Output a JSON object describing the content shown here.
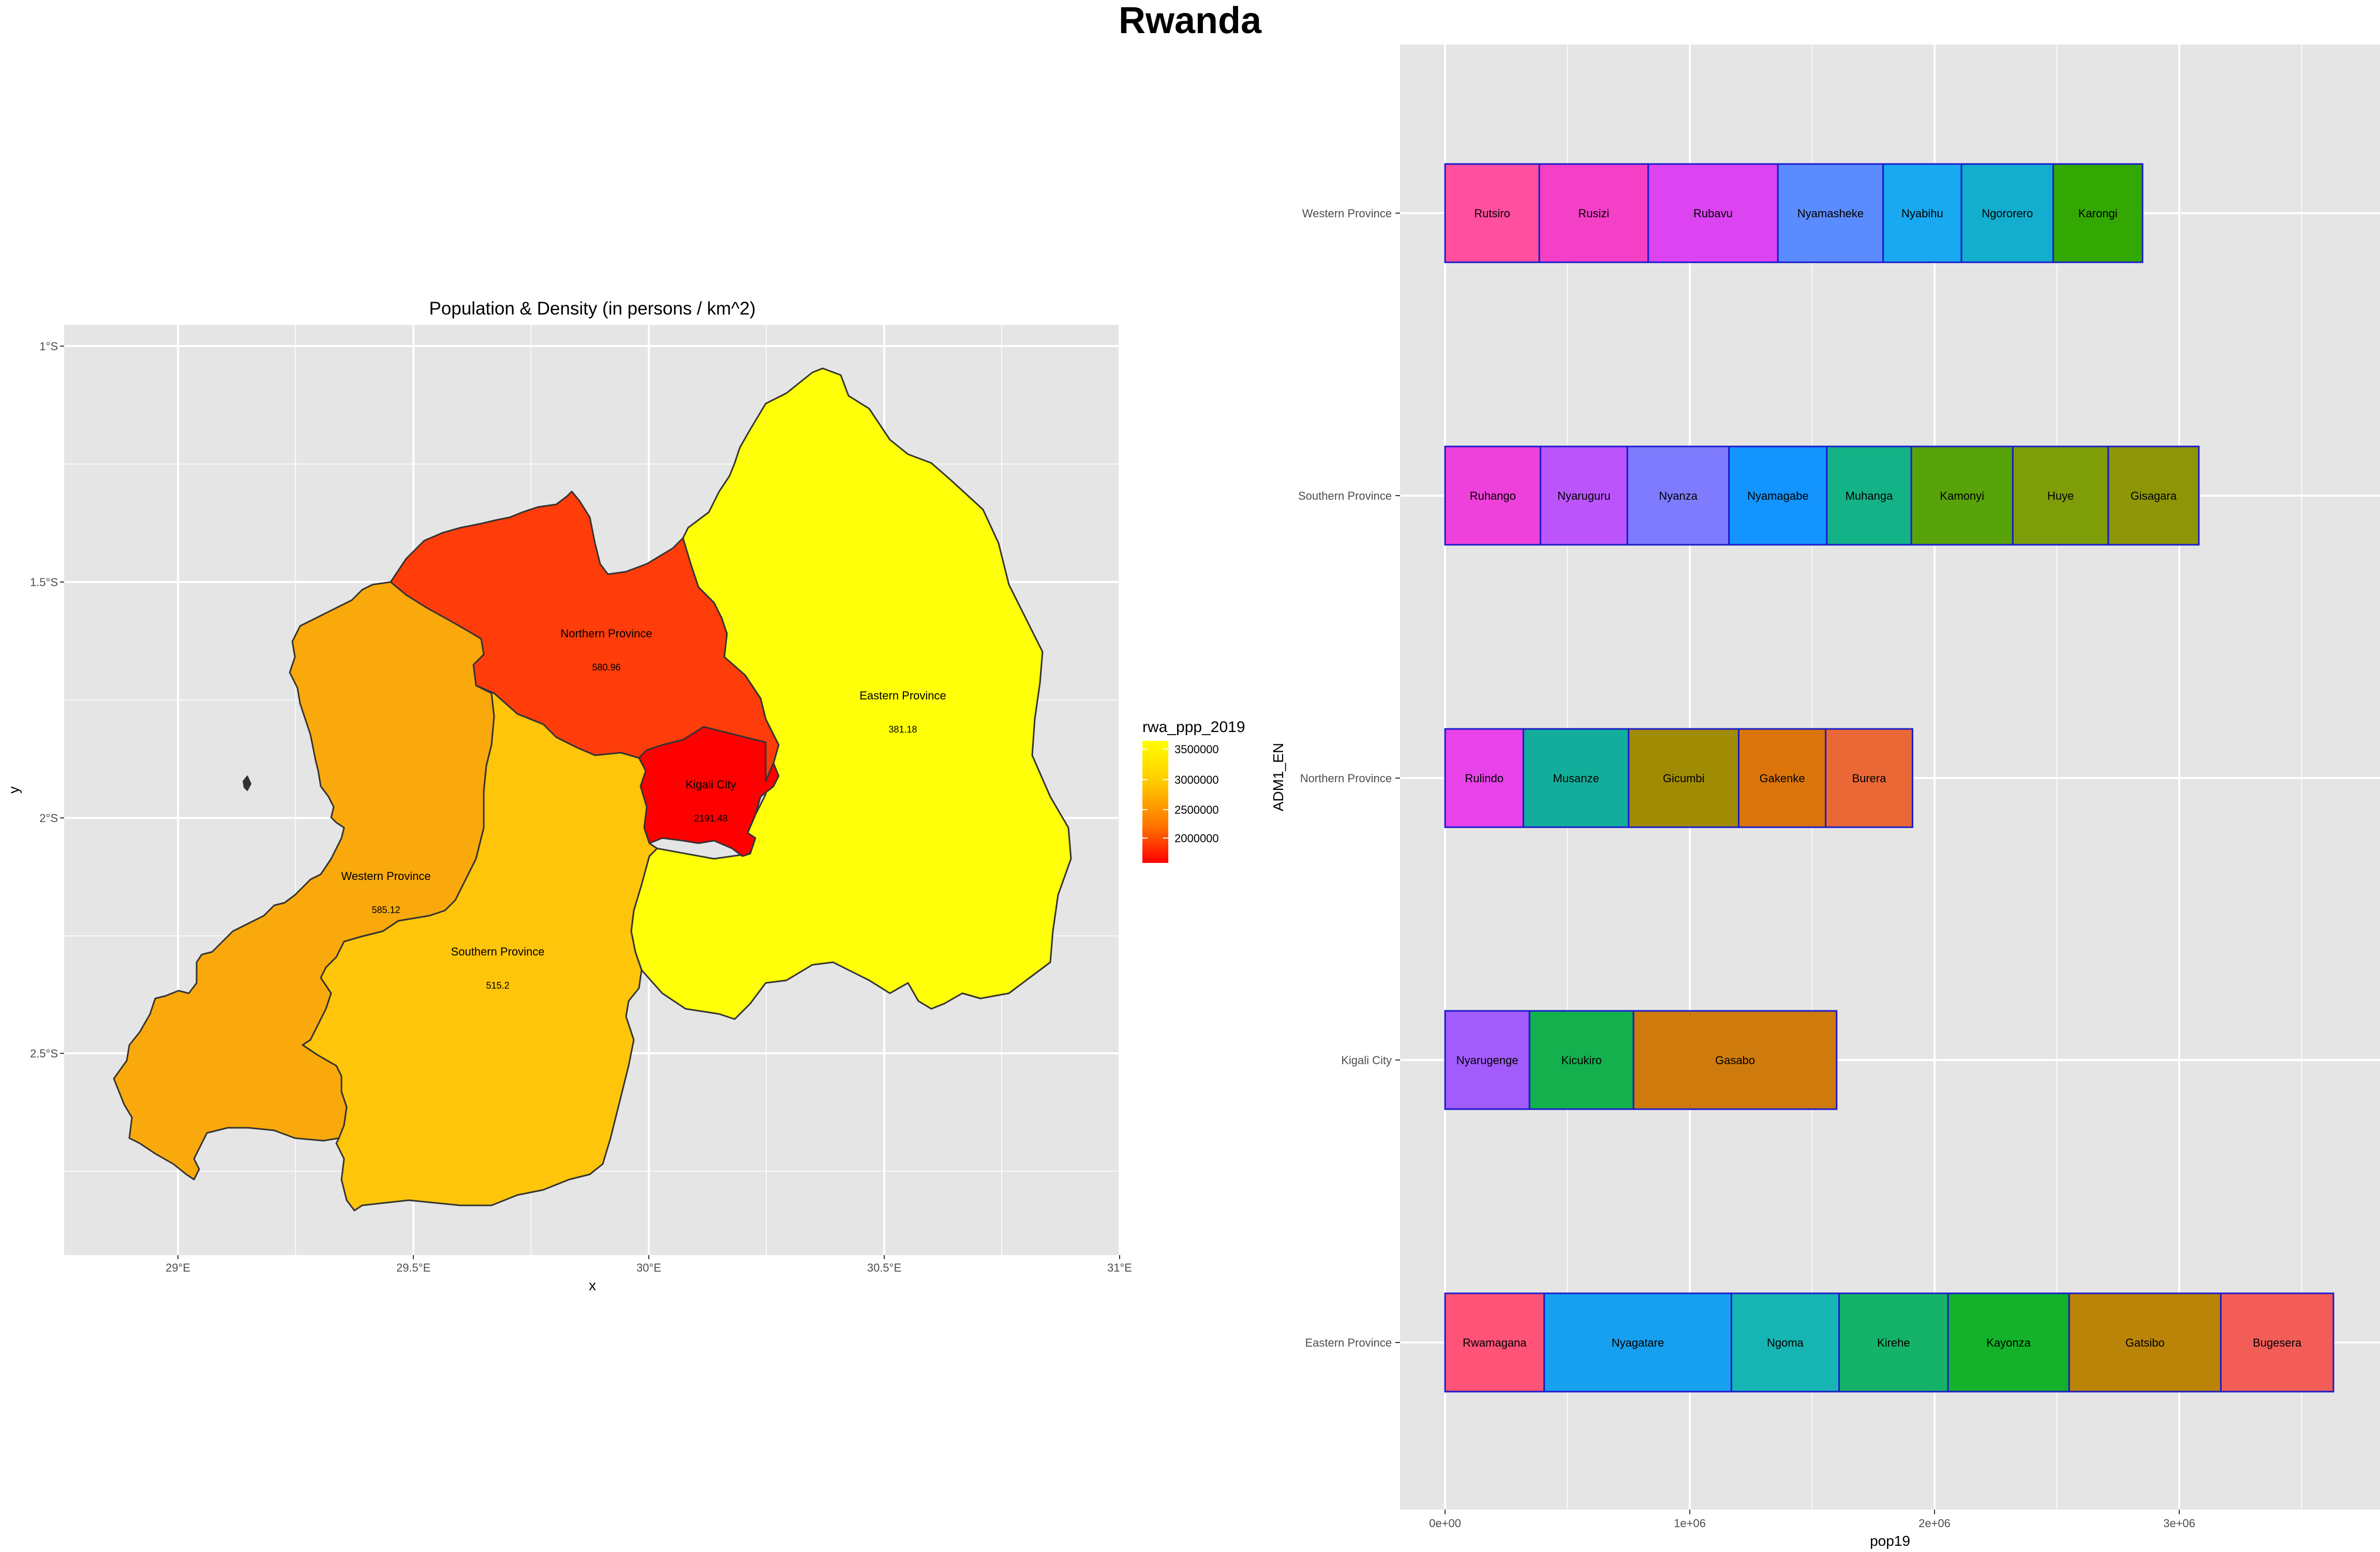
{
  "title": "Rwanda",
  "chart_data": [
    {
      "type": "choropleth",
      "title": "Population & Density (in persons / km^2)",
      "xlabel": "x",
      "ylabel": "y",
      "x_ticks": [
        "29°E",
        "29.5°E",
        "30°E",
        "30.5°E",
        "31°E"
      ],
      "y_ticks": [
        "1°S",
        "1.5°S",
        "2°S",
        "2.5°S"
      ],
      "legend": {
        "title": "rwa_ppp_2019",
        "ticks": [
          "3500000",
          "3000000",
          "2500000",
          "2000000"
        ],
        "colors": [
          "#ffff00",
          "#ff0000"
        ]
      },
      "regions": [
        {
          "name": "Eastern Province",
          "density": "381.18",
          "color": "#ffff0a"
        },
        {
          "name": "Northern Province",
          "density": "580.96",
          "color": "#ff3d0a"
        },
        {
          "name": "Kigali City",
          "density": "2191.48",
          "color": "#ff0000"
        },
        {
          "name": "Western Province",
          "density": "585.12",
          "color": "#f9a90c"
        },
        {
          "name": "Southern Province",
          "density": "515.2",
          "color": "#fec50a"
        }
      ]
    },
    {
      "type": "bar",
      "stacked": true,
      "orientation": "horizontal",
      "xlabel": "pop19",
      "ylabel": "ADM1_EN",
      "x_ticks": [
        "0e+00",
        "1e+06",
        "2e+06",
        "3e+06"
      ],
      "xlim": [
        0,
        3600000
      ],
      "categories": [
        "Western Province",
        "Southern Province",
        "Northern Province",
        "Kigali City",
        "Eastern Province"
      ],
      "series": [
        {
          "category": "Western Province",
          "segments": [
            {
              "name": "Rutsiro",
              "value": 385000,
              "color": "#ff4f9e"
            },
            {
              "name": "Rusizi",
              "value": 445000,
              "color": "#f43fc7"
            },
            {
              "name": "Rubavu",
              "value": 530000,
              "color": "#db44f0"
            },
            {
              "name": "Nyamasheke",
              "value": 430000,
              "color": "#5b8cff"
            },
            {
              "name": "Nyabihu",
              "value": 320000,
              "color": "#19a9f0"
            },
            {
              "name": "Ngororero",
              "value": 375000,
              "color": "#13adce"
            },
            {
              "name": "Karongi",
              "value": 365000,
              "color": "#33a803"
            }
          ]
        },
        {
          "category": "Southern Province",
          "segments": [
            {
              "name": "Ruhango",
              "value": 390000,
              "color": "#ee40da"
            },
            {
              "name": "Nyaruguru",
              "value": 355000,
              "color": "#bb55fb"
            },
            {
              "name": "Nyanza",
              "value": 415000,
              "color": "#7e7bff"
            },
            {
              "name": "Nyamagabe",
              "value": 400000,
              "color": "#1394ff"
            },
            {
              "name": "Muhanga",
              "value": 345000,
              "color": "#14b387"
            },
            {
              "name": "Kamonyi",
              "value": 415000,
              "color": "#58a20a"
            },
            {
              "name": "Huye",
              "value": 390000,
              "color": "#7f9d09"
            },
            {
              "name": "Gisagara",
              "value": 370000,
              "color": "#8e9607"
            }
          ]
        },
        {
          "category": "Northern Province",
          "segments": [
            {
              "name": "Rulindo",
              "value": 320000,
              "color": "#e843e9"
            },
            {
              "name": "Musanze",
              "value": 430000,
              "color": "#13ae9b"
            },
            {
              "name": "Gicumbi",
              "value": 450000,
              "color": "#a08b05"
            },
            {
              "name": "Gakenke",
              "value": 355000,
              "color": "#db750b"
            },
            {
              "name": "Burera",
              "value": 355000,
              "color": "#ea6836"
            }
          ]
        },
        {
          "category": "Kigali City",
          "segments": [
            {
              "name": "Nyarugenge",
              "value": 345000,
              "color": "#a25cfb"
            },
            {
              "name": "Kicukiro",
              "value": 425000,
              "color": "#13b04d"
            },
            {
              "name": "Gasabo",
              "value": 830000,
              "color": "#ce7a0c"
            }
          ]
        },
        {
          "category": "Eastern Province",
          "segments": [
            {
              "name": "Rwamagana",
              "value": 405000,
              "color": "#ff5478"
            },
            {
              "name": "Nyagatare",
              "value": 765000,
              "color": "#17a0ef"
            },
            {
              "name": "Ngoma",
              "value": 440000,
              "color": "#16b5b4"
            },
            {
              "name": "Kirehe",
              "value": 445000,
              "color": "#15b369"
            },
            {
              "name": "Kayonza",
              "value": 495000,
              "color": "#13b22a"
            },
            {
              "name": "Gatsibo",
              "value": 620000,
              "color": "#ba8408"
            },
            {
              "name": "Bugesera",
              "value": 460000,
              "color": "#f35d58"
            }
          ]
        }
      ]
    }
  ]
}
